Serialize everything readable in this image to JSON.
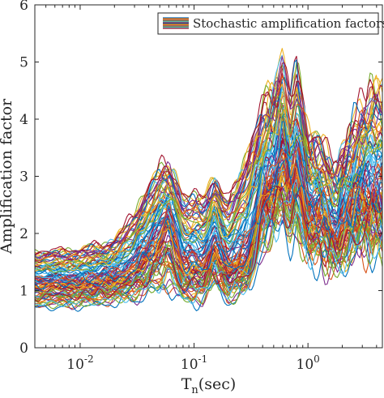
{
  "chart_data": {
    "type": "line",
    "xlabel_main": "T",
    "xlabel_sub": "n",
    "xlabel_rest": "(sec)",
    "ylabel": "Amplification factor",
    "x_scale": "log",
    "x_range": [
      0.004,
      4.5
    ],
    "ylim": [
      0,
      6
    ],
    "y_ticks": [
      0,
      1,
      2,
      3,
      4,
      5,
      6
    ],
    "x_ticks": [
      {
        "value": 0.01,
        "base": "10",
        "exp": "-2"
      },
      {
        "value": 0.1,
        "base": "10",
        "exp": "-1"
      },
      {
        "value": 1,
        "base": "10",
        "exp": "0"
      }
    ],
    "grid": false,
    "legend": {
      "placement": "top-right",
      "label": "Stochastic amplification factors"
    },
    "series_count": 100,
    "envelope": {
      "description_of_band": "period (sec) vs amplification factor range across series",
      "period": [
        0.004,
        0.01,
        0.02,
        0.03,
        0.05,
        0.06,
        0.08,
        0.12,
        0.15,
        0.2,
        0.3,
        0.4,
        0.5,
        0.6,
        0.7,
        0.8,
        1.0,
        1.3,
        1.8,
        2.5,
        3.5,
        4.5
      ],
      "median": [
        1.1,
        1.12,
        1.2,
        1.35,
        1.9,
        2.2,
        1.45,
        1.35,
        1.8,
        1.35,
        1.6,
        2.6,
        2.8,
        3.3,
        2.9,
        3.1,
        2.3,
        2.3,
        1.9,
        2.5,
        2.6,
        2.5
      ],
      "min": [
        0.7,
        0.72,
        0.78,
        0.85,
        1.0,
        1.1,
        0.75,
        0.85,
        1.1,
        0.8,
        1.0,
        1.8,
        2.0,
        2.2,
        1.9,
        2.0,
        1.6,
        1.5,
        1.4,
        1.6,
        1.8,
        1.7
      ],
      "max": [
        1.7,
        1.75,
        1.9,
        2.4,
        3.2,
        3.25,
        2.7,
        2.7,
        3.0,
        2.6,
        3.5,
        4.3,
        4.6,
        5.1,
        4.4,
        5.0,
        3.8,
        3.6,
        3.2,
        4.0,
        4.5,
        4.6
      ]
    },
    "colors": [
      "#0072BD",
      "#D95319",
      "#EDB120",
      "#7E2F8E",
      "#77AC30",
      "#4DBEEE",
      "#A2142F"
    ]
  }
}
